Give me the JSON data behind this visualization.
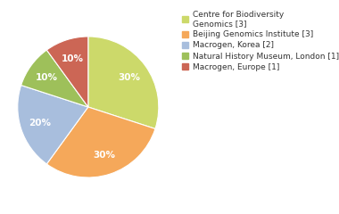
{
  "labels": [
    "Centre for Biodiversity\nGenomics [3]",
    "Beijing Genomics Institute [3]",
    "Macrogen, Korea [2]",
    "Natural History Museum, London [1]",
    "Macrogen, Europe [1]"
  ],
  "values": [
    30,
    30,
    20,
    10,
    10
  ],
  "colors": [
    "#ccd96a",
    "#f5a85a",
    "#a8bedd",
    "#9ec05a",
    "#cc6655"
  ],
  "background_color": "#ffffff",
  "text_color": "#333333",
  "pct_fontsize": 7.5,
  "legend_fontsize": 6.5,
  "startangle": 90,
  "pctdistance": 0.72
}
